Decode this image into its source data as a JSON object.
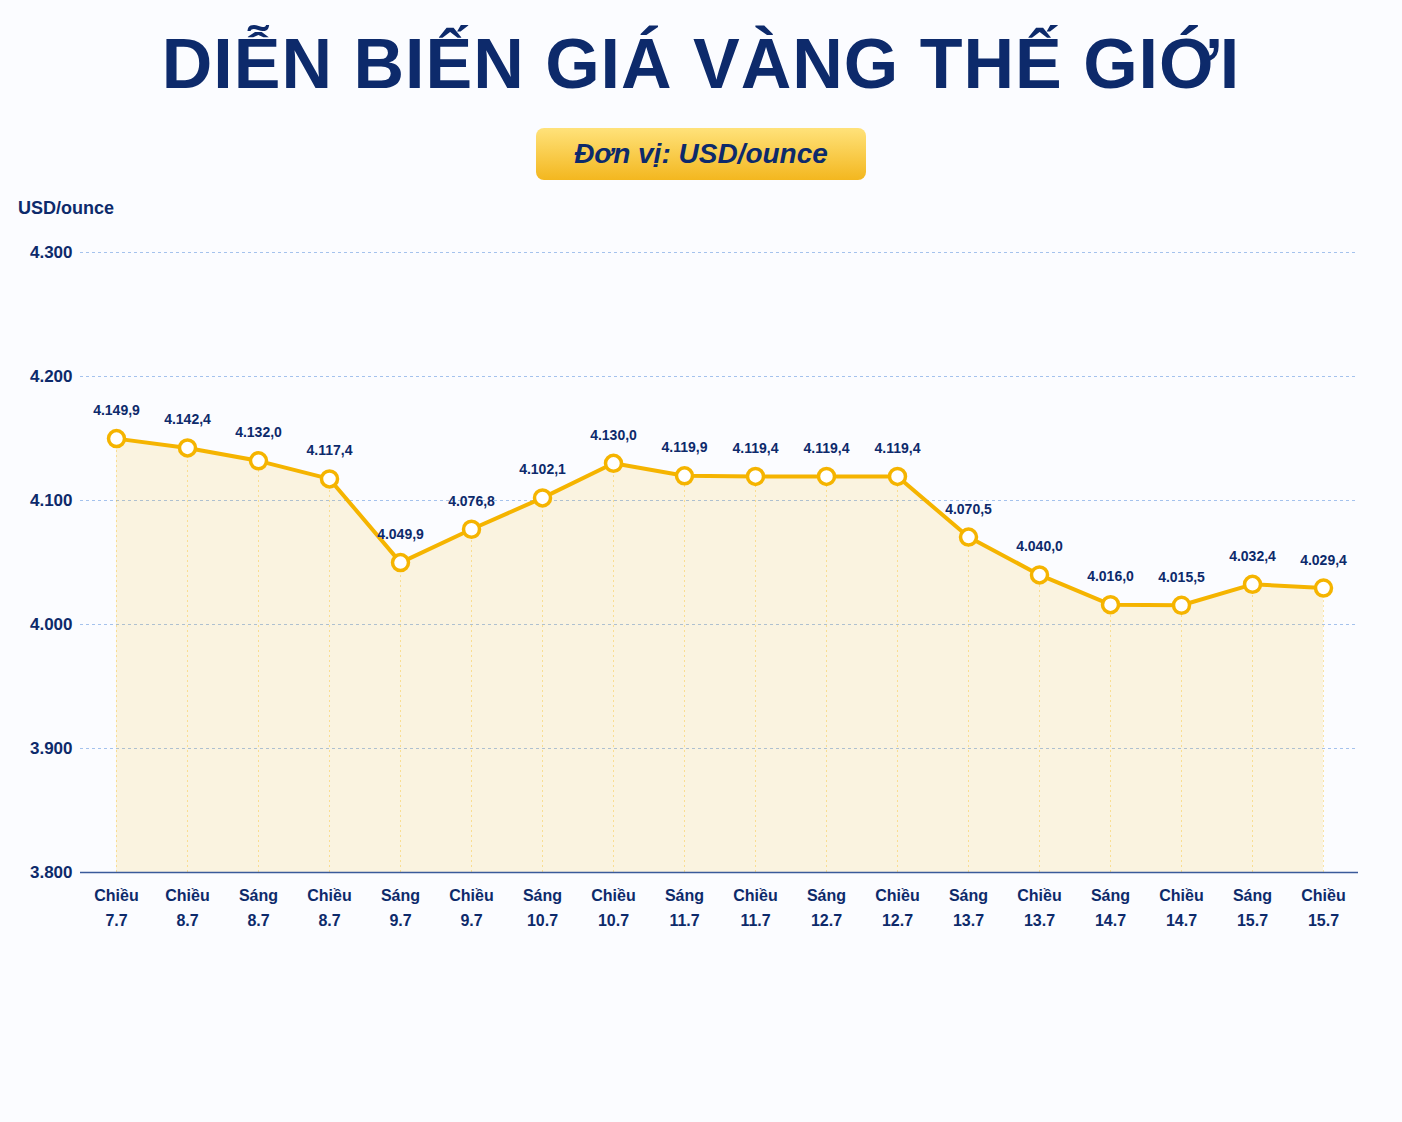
{
  "chart_data": {
    "type": "line",
    "title": "DIỄN BIẾN GIÁ VÀNG THẾ GIỚI",
    "subtitle": "Đơn vị: USD/ounce",
    "ylabel": "USD/ounce",
    "categories": [
      "Chiều 7.7",
      "Chiều 8.7",
      "Sáng 8.7",
      "Chiều 8.7",
      "Sáng 9.7",
      "Chiều 9.7",
      "Sáng 10.7",
      "Chiều 10.7",
      "Sáng 11.7",
      "Chiều 11.7",
      "Sáng 12.7",
      "Chiều 12.7",
      "Sáng 13.7",
      "Chiều 13.7",
      "Sáng 14.7",
      "Chiều 14.7",
      "Sáng 15.7",
      "Chiều 15.7"
    ],
    "values": [
      4149.9,
      4142.4,
      4132.0,
      4117.4,
      4049.9,
      4076.8,
      4102.1,
      4130.0,
      4119.9,
      4119.4,
      4119.4,
      4119.4,
      4070.5,
      4040.0,
      4016.0,
      4015.5,
      4032.4,
      4029.4
    ],
    "value_labels": [
      "4.149,9",
      "4.142,4",
      "4.132,0",
      "4.117,4",
      "4.049,9",
      "4.076,8",
      "4.102,1",
      "4.130,0",
      "4.119,9",
      "4.119,4",
      "4.119,4",
      "4.119,4",
      "4.070,5",
      "4.040,0",
      "4.016,0",
      "4.015,5",
      "4.032,4",
      "4.029,4"
    ],
    "color": "#f5b400",
    "marker": "circle",
    "data_labels": true,
    "grid": true,
    "ylim": [
      3800,
      4300
    ],
    "yticks": [
      {
        "value": 3800,
        "label": "3.800"
      },
      {
        "value": 3900,
        "label": "3.900"
      },
      {
        "value": 4000,
        "label": "4.000"
      },
      {
        "value": 4100,
        "label": "4.100"
      },
      {
        "value": 4200,
        "label": "4.200"
      },
      {
        "value": 4300,
        "label": "4.300"
      }
    ]
  }
}
